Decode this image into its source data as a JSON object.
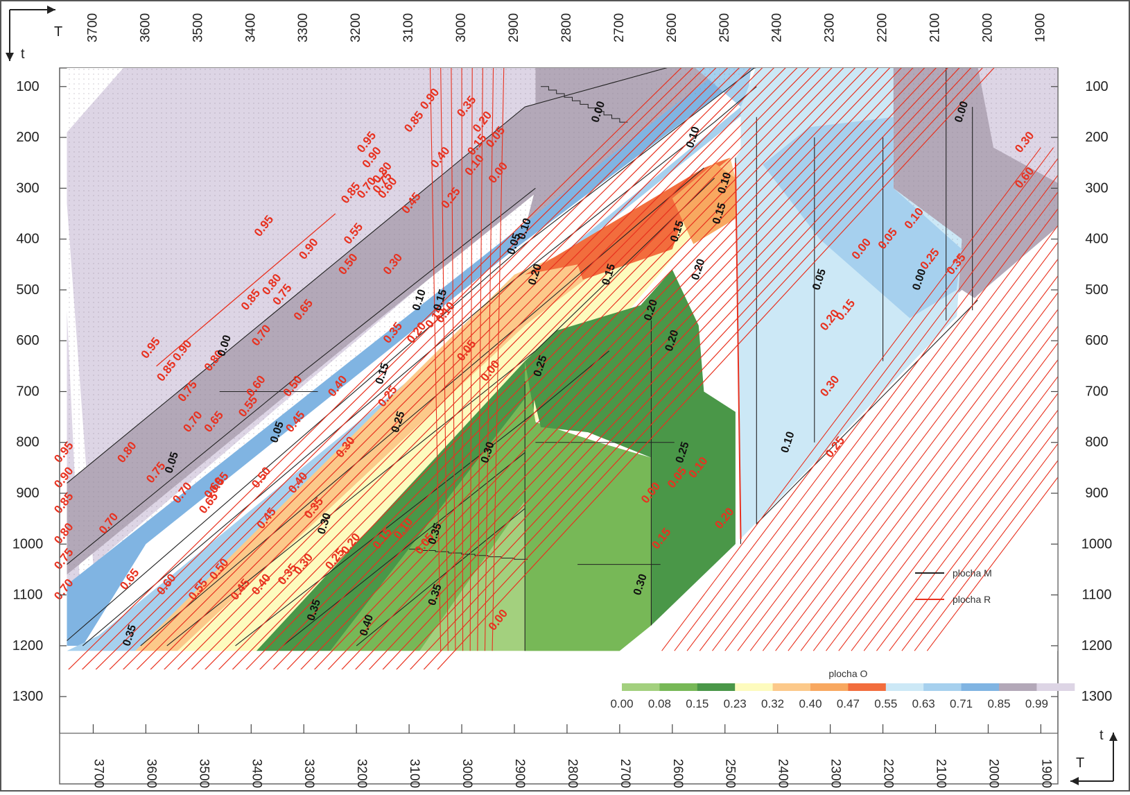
{
  "chart_data": {
    "type": "heatmap",
    "title": "",
    "axes": {
      "T": {
        "label": "T",
        "ticks": [
          3700,
          3600,
          3500,
          3400,
          3300,
          3200,
          3100,
          3000,
          2900,
          2800,
          2700,
          2600,
          2500,
          2400,
          2300,
          2200,
          2100,
          2000,
          1900
        ],
        "range": [
          3750,
          1850
        ]
      },
      "t": {
        "label": "t",
        "ticks": [
          100,
          200,
          300,
          400,
          500,
          600,
          700,
          800,
          900,
          1000,
          1100,
          1200,
          1300
        ],
        "range": [
          60,
          1320
        ]
      }
    },
    "colorbar": {
      "title": "plocha O",
      "ticks": [
        "0.00",
        "0.08",
        "0.15",
        "0.23",
        "0.32",
        "0.40",
        "0.47",
        "0.55",
        "0.63",
        "0.71",
        "0.85",
        "0.99"
      ],
      "colors": [
        "#a3d07e",
        "#77b857",
        "#4a9748",
        "#fdfbbe",
        "#fcc98a",
        "#f8a860",
        "#f26d3d",
        "#cce8f6",
        "#a6d0ee",
        "#80b4e2",
        "#b3a8b8",
        "#ddd5e5"
      ]
    },
    "legend": [
      {
        "name": "plocha M",
        "color": "#222222"
      },
      {
        "name": "plocha R",
        "color": "#e8311f"
      }
    ],
    "contour_labels_R": [
      {
        "text": "0.95",
        "T": 3375,
        "t": 375
      },
      {
        "text": "0.90",
        "T": 3290,
        "t": 420
      },
      {
        "text": "0.85",
        "T": 3400,
        "t": 520
      },
      {
        "text": "0.80",
        "T": 3360,
        "t": 490
      },
      {
        "text": "0.75",
        "T": 3340,
        "t": 510
      },
      {
        "text": "0.70",
        "T": 3380,
        "t": 590
      },
      {
        "text": "0.65",
        "T": 3300,
        "t": 540
      },
      {
        "text": "0.90",
        "T": 3060,
        "t": 125
      },
      {
        "text": "0.85",
        "T": 3090,
        "t": 170
      },
      {
        "text": "0.95",
        "T": 3180,
        "t": 210
      },
      {
        "text": "0.90",
        "T": 3170,
        "t": 240
      },
      {
        "text": "0.80",
        "T": 3150,
        "t": 270
      },
      {
        "text": "0.75",
        "T": 3150,
        "t": 290
      },
      {
        "text": "0.85",
        "T": 3210,
        "t": 310
      },
      {
        "text": "0.70",
        "T": 3180,
        "t": 300
      },
      {
        "text": "0.60",
        "T": 3140,
        "t": 300
      },
      {
        "text": "0.45",
        "T": 3095,
        "t": 330
      },
      {
        "text": "0.40",
        "T": 3040,
        "t": 240
      },
      {
        "text": "0.35",
        "T": 2990,
        "t": 140
      },
      {
        "text": "0.25",
        "T": 3020,
        "t": 320
      },
      {
        "text": "0.20",
        "T": 2960,
        "t": 170
      },
      {
        "text": "0.15",
        "T": 2970,
        "t": 215
      },
      {
        "text": "0.10",
        "T": 2975,
        "t": 255
      },
      {
        "text": "0.05",
        "T": 2935,
        "t": 200
      },
      {
        "text": "0.00",
        "T": 2930,
        "t": 270
      },
      {
        "text": "0.55",
        "T": 3205,
        "t": 390
      },
      {
        "text": "0.50",
        "T": 3215,
        "t": 450
      },
      {
        "text": "0.30",
        "T": 3130,
        "t": 450
      },
      {
        "text": "0.35",
        "T": 3130,
        "t": 585
      },
      {
        "text": "0.20",
        "T": 3085,
        "t": 585
      },
      {
        "text": "0.15",
        "T": 3050,
        "t": 555
      },
      {
        "text": "0.10",
        "T": 3030,
        "t": 545
      },
      {
        "text": "0.05",
        "T": 2990,
        "t": 620
      },
      {
        "text": "0.00",
        "T": 2945,
        "t": 660
      },
      {
        "text": "0.95",
        "T": 3590,
        "t": 615
      },
      {
        "text": "0.90",
        "T": 3530,
        "t": 620
      },
      {
        "text": "0.85",
        "T": 3560,
        "t": 660
      },
      {
        "text": "0.80",
        "T": 3470,
        "t": 640
      },
      {
        "text": "0.75",
        "T": 3520,
        "t": 700
      },
      {
        "text": "0.70",
        "T": 3510,
        "t": 760
      },
      {
        "text": "0.65",
        "T": 3470,
        "t": 760
      },
      {
        "text": "0.60",
        "T": 3390,
        "t": 690
      },
      {
        "text": "0.55",
        "T": 3405,
        "t": 730
      },
      {
        "text": "0.50",
        "T": 3320,
        "t": 690
      },
      {
        "text": "0.45",
        "T": 3315,
        "t": 760
      },
      {
        "text": "0.40",
        "T": 3235,
        "t": 690
      },
      {
        "text": "0.30",
        "T": 3220,
        "t": 810
      },
      {
        "text": "0.25",
        "T": 3140,
        "t": 710
      },
      {
        "text": "0.80",
        "T": 3635,
        "t": 820
      },
      {
        "text": "0.75",
        "T": 3580,
        "t": 860
      },
      {
        "text": "0.70",
        "T": 3530,
        "t": 900
      },
      {
        "text": "0.65",
        "T": 3480,
        "t": 920
      },
      {
        "text": "0.60",
        "T": 3470,
        "t": 890
      },
      {
        "text": "0.55",
        "T": 3460,
        "t": 880
      },
      {
        "text": "0.50",
        "T": 3380,
        "t": 870
      },
      {
        "text": "0.45",
        "T": 3370,
        "t": 950
      },
      {
        "text": "0.40",
        "T": 3310,
        "t": 880
      },
      {
        "text": "0.35",
        "T": 3280,
        "t": 930
      },
      {
        "text": "0.95",
        "T": 3755,
        "t": 820
      },
      {
        "text": "0.90",
        "T": 3755,
        "t": 870
      },
      {
        "text": "0.85",
        "T": 3755,
        "t": 920
      },
      {
        "text": "0.80",
        "T": 3755,
        "t": 980
      },
      {
        "text": "0.75",
        "T": 3755,
        "t": 1030
      },
      {
        "text": "0.70",
        "T": 3755,
        "t": 1090
      },
      {
        "text": "0.70",
        "T": 3670,
        "t": 960
      },
      {
        "text": "0.65",
        "T": 3630,
        "t": 1070
      },
      {
        "text": "0.60",
        "T": 3560,
        "t": 1080
      },
      {
        "text": "0.55",
        "T": 3500,
        "t": 1090
      },
      {
        "text": "0.50",
        "T": 3460,
        "t": 1050
      },
      {
        "text": "0.45",
        "T": 3420,
        "t": 1090
      },
      {
        "text": "0.40",
        "T": 3380,
        "t": 1080
      },
      {
        "text": "0.35",
        "T": 3330,
        "t": 1060
      },
      {
        "text": "0.30",
        "T": 3300,
        "t": 1040
      },
      {
        "text": "0.25",
        "T": 3240,
        "t": 1030
      },
      {
        "text": "0.20",
        "T": 3210,
        "t": 1000
      },
      {
        "text": "0.15",
        "T": 3150,
        "t": 990
      },
      {
        "text": "0.10",
        "T": 3110,
        "t": 970
      },
      {
        "text": "0.05",
        "T": 3070,
        "t": 1000
      },
      {
        "text": "0.00",
        "T": 2930,
        "t": 1150
      },
      {
        "text": "0.00",
        "T": 2640,
        "t": 900
      },
      {
        "text": "0.05",
        "T": 2590,
        "t": 870
      },
      {
        "text": "0.10",
        "T": 2550,
        "t": 850
      },
      {
        "text": "0.15",
        "T": 2620,
        "t": 990
      },
      {
        "text": "0.20",
        "T": 2500,
        "t": 950
      },
      {
        "text": "0.30",
        "T": 2300,
        "t": 690
      },
      {
        "text": "0.25",
        "T": 2290,
        "t": 810
      },
      {
        "text": "0.20",
        "T": 2300,
        "t": 560
      },
      {
        "text": "0.15",
        "T": 2270,
        "t": 540
      },
      {
        "text": "0.00",
        "T": 2240,
        "t": 420
      },
      {
        "text": "0.05",
        "T": 2190,
        "t": 400
      },
      {
        "text": "0.10",
        "T": 2140,
        "t": 360
      },
      {
        "text": "0.25",
        "T": 2110,
        "t": 440
      },
      {
        "text": "0.35",
        "T": 2060,
        "t": 450
      },
      {
        "text": "0.30",
        "T": 1930,
        "t": 210
      },
      {
        "text": "0.60",
        "T": 1930,
        "t": 280
      }
    ],
    "contour_labels_M": [
      {
        "text": "0.00",
        "T": 2740,
        "t": 150
      },
      {
        "text": "0.10",
        "T": 2560,
        "t": 200
      },
      {
        "text": "0.10",
        "T": 2500,
        "t": 290
      },
      {
        "text": "0.00",
        "T": 2050,
        "t": 150
      },
      {
        "text": "0.10",
        "T": 2880,
        "t": 380
      },
      {
        "text": "0.05",
        "T": 2900,
        "t": 410
      },
      {
        "text": "0.20",
        "T": 2860,
        "t": 470
      },
      {
        "text": "0.15",
        "T": 2720,
        "t": 470
      },
      {
        "text": "0.15",
        "T": 2590,
        "t": 385
      },
      {
        "text": "0.15",
        "T": 2510,
        "t": 350
      },
      {
        "text": "0.20",
        "T": 2550,
        "t": 460
      },
      {
        "text": "0.05",
        "T": 2320,
        "t": 480
      },
      {
        "text": "0.00",
        "T": 2130,
        "t": 480
      },
      {
        "text": "0.10",
        "T": 3080,
        "t": 520
      },
      {
        "text": "0.15",
        "T": 3040,
        "t": 520
      },
      {
        "text": "0.20",
        "T": 2640,
        "t": 540
      },
      {
        "text": "0.20",
        "T": 2600,
        "t": 600
      },
      {
        "text": "0.25",
        "T": 2850,
        "t": 650
      },
      {
        "text": "0.15",
        "T": 3150,
        "t": 665
      },
      {
        "text": "0.00",
        "T": 3450,
        "t": 610
      },
      {
        "text": "0.25",
        "T": 3120,
        "t": 760
      },
      {
        "text": "0.05",
        "T": 3350,
        "t": 780
      },
      {
        "text": "0.10",
        "T": 2380,
        "t": 800
      },
      {
        "text": "0.30",
        "T": 2950,
        "t": 820
      },
      {
        "text": "0.25",
        "T": 2580,
        "t": 820
      },
      {
        "text": "0.05",
        "T": 3550,
        "t": 840
      },
      {
        "text": "0.30",
        "T": 3260,
        "t": 960
      },
      {
        "text": "0.35",
        "T": 3050,
        "t": 980
      },
      {
        "text": "0.35",
        "T": 3050,
        "t": 1100
      },
      {
        "text": "0.30",
        "T": 2660,
        "t": 1080
      },
      {
        "text": "0.35",
        "T": 3280,
        "t": 1130
      },
      {
        "text": "0.40",
        "T": 3180,
        "t": 1160
      },
      {
        "text": "0.35",
        "T": 3630,
        "t": 1180
      }
    ]
  }
}
